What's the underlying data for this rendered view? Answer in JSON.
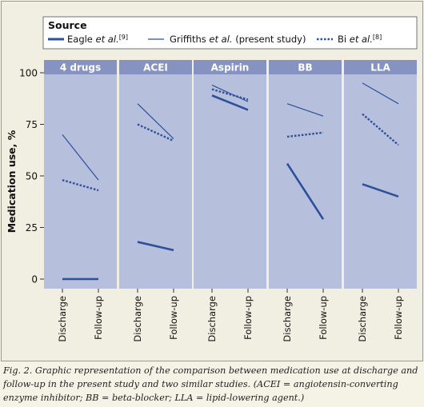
{
  "legend": {
    "title": "Source",
    "entries": [
      {
        "name": "Eagle et al.[9]",
        "prefix": "Eagle ",
        "italic": "et al.",
        "sup": "[9]",
        "style": "thick"
      },
      {
        "name": "Griffiths et al. (present study)",
        "prefix": "Griffiths ",
        "italic": "et al.",
        "suffix": " (present study)",
        "style": "thin"
      },
      {
        "name": "Bi et al.[8]",
        "prefix": "Bi ",
        "italic": "et al.",
        "sup": "[8]",
        "style": "dotted"
      }
    ]
  },
  "caption": {
    "text": "Fig. 2. Graphic representation of the comparison between medication use at discharge and follow-up in the present study and two similar studies. (ACEI = angiotensin-converting enzyme inhibitor; BB = beta-blocker; LLA = lipid-lowering agent.)"
  },
  "colors": {
    "line": "#2e4f9b",
    "panel_bg": "#b6bfdb",
    "strip_bg": "#8693c1",
    "strip_text": "#ffffff"
  },
  "chart_data": {
    "type": "line",
    "ylabel": "Medication use, %",
    "xlabel": "",
    "ylim": [
      0,
      100
    ],
    "yticks": [
      0,
      25,
      50,
      75,
      100
    ],
    "categories": [
      "Discharge",
      "Follow-up"
    ],
    "panels": [
      {
        "label": "4 drugs",
        "series": [
          {
            "name": "Eagle et al.",
            "values": [
              0,
              0
            ]
          },
          {
            "name": "Griffiths et al.",
            "values": [
              70,
              48
            ]
          },
          {
            "name": "Bi et al.",
            "values": [
              48,
              43
            ]
          }
        ]
      },
      {
        "label": "ACEI",
        "series": [
          {
            "name": "Eagle et al.",
            "values": [
              18,
              14
            ]
          },
          {
            "name": "Griffiths et al.",
            "values": [
              85,
              68
            ]
          },
          {
            "name": "Bi et al.",
            "values": [
              75,
              67
            ]
          }
        ]
      },
      {
        "label": "Aspirin",
        "series": [
          {
            "name": "Eagle et al.",
            "values": [
              89,
              82
            ]
          },
          {
            "name": "Griffiths et al.",
            "values": [
              94,
              86
            ]
          },
          {
            "name": "Bi et al.",
            "values": [
              92,
              87
            ]
          }
        ]
      },
      {
        "label": "BB",
        "series": [
          {
            "name": "Eagle et al.",
            "values": [
              56,
              29
            ]
          },
          {
            "name": "Griffiths et al.",
            "values": [
              85,
              79
            ]
          },
          {
            "name": "Bi et al.",
            "values": [
              69,
              71
            ]
          }
        ]
      },
      {
        "label": "LLA",
        "series": [
          {
            "name": "Eagle et al.",
            "values": [
              46,
              40
            ]
          },
          {
            "name": "Griffiths et al.",
            "values": [
              95,
              85
            ]
          },
          {
            "name": "Bi et al.",
            "values": [
              80,
              65
            ]
          }
        ]
      }
    ]
  }
}
